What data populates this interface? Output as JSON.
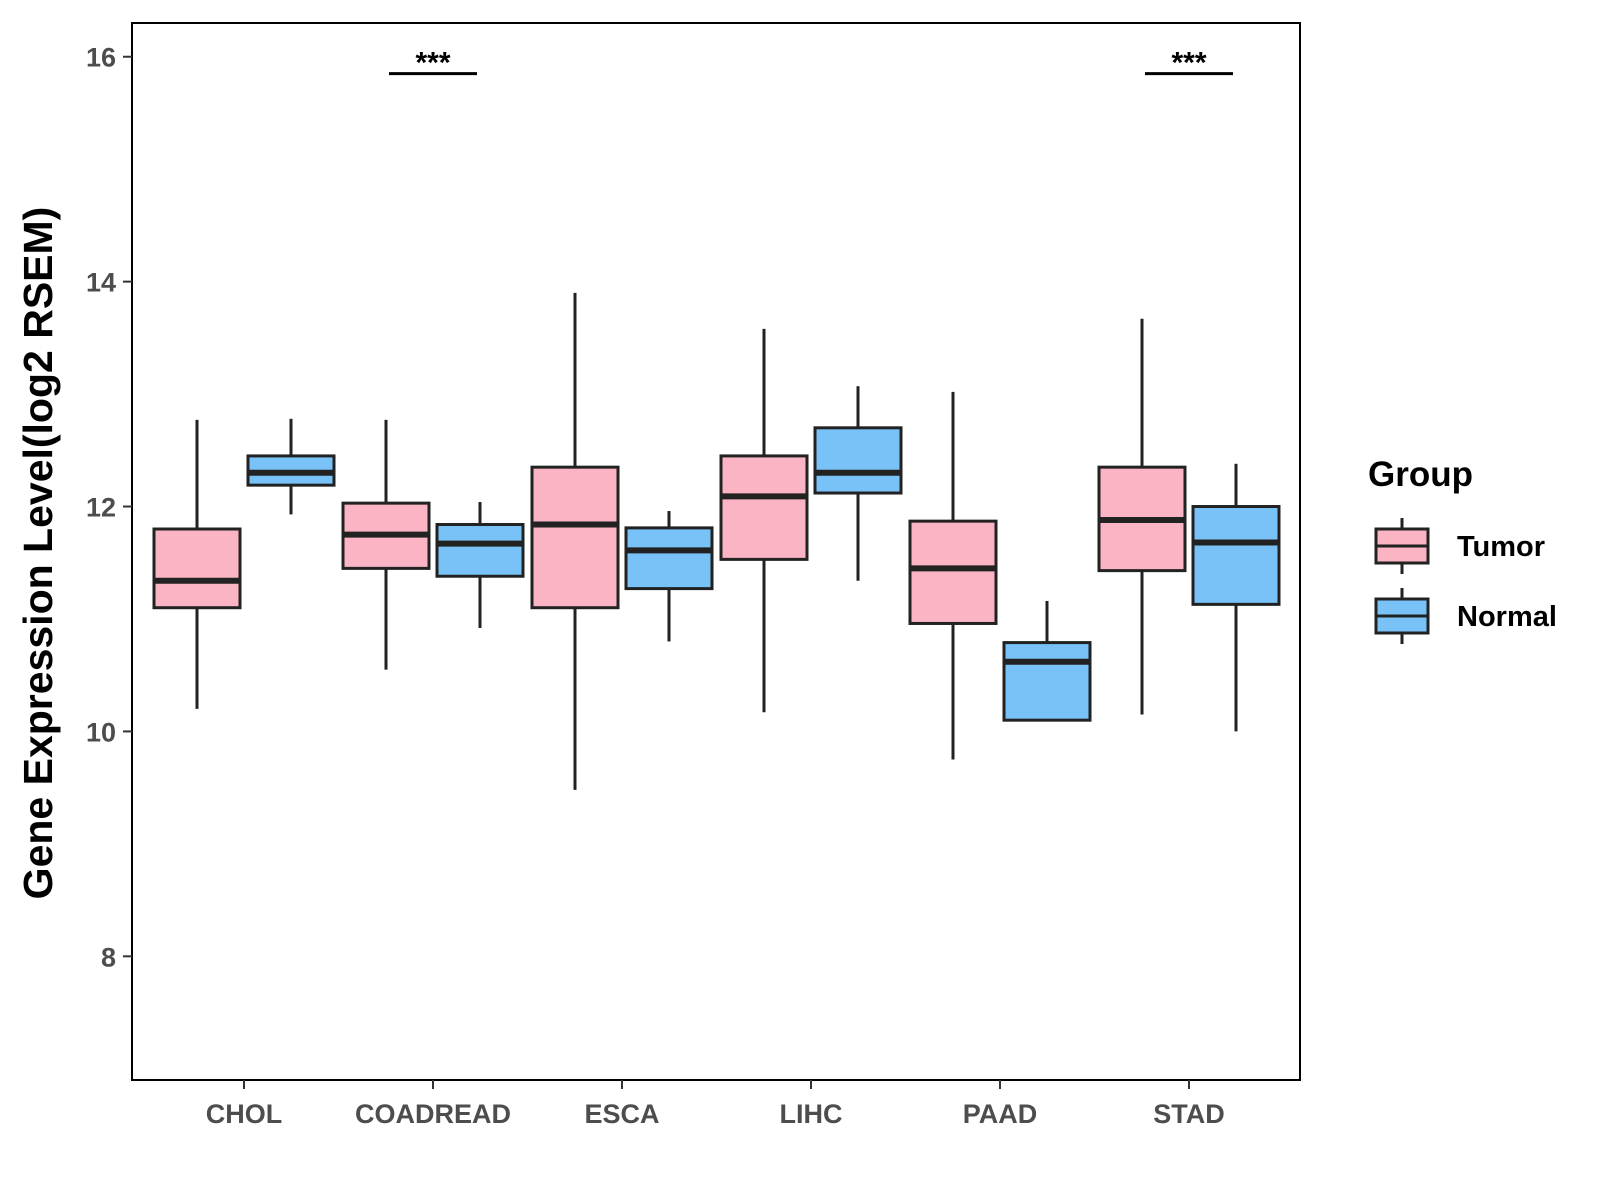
{
  "chart_data": {
    "type": "box",
    "title": "",
    "xlabel": "",
    "ylabel": "Gene Expression Level(log2 RSEM)",
    "ylim": [
      6.9,
      16.3
    ],
    "yticks": [
      8,
      10,
      12,
      14,
      16
    ],
    "categories": [
      "CHOL",
      "COADREAD",
      "ESCA",
      "LIHC",
      "PAAD",
      "STAD"
    ],
    "legend": {
      "title": "Group",
      "position": "right"
    },
    "grid": false,
    "series": [
      {
        "name": "Tumor",
        "color": "#fbb4c3",
        "boxes": [
          {
            "min": 10.2,
            "q1": 11.1,
            "median": 11.34,
            "q3": 11.8,
            "max": 12.77
          },
          {
            "min": 10.55,
            "q1": 11.45,
            "median": 11.75,
            "q3": 12.03,
            "max": 12.77
          },
          {
            "min": 9.48,
            "q1": 11.1,
            "median": 11.84,
            "q3": 12.35,
            "max": 13.9
          },
          {
            "min": 10.17,
            "q1": 11.53,
            "median": 12.09,
            "q3": 12.45,
            "max": 13.58
          },
          {
            "min": 9.75,
            "q1": 10.96,
            "median": 11.45,
            "q3": 11.87,
            "max": 13.02
          },
          {
            "min": 10.15,
            "q1": 11.43,
            "median": 11.88,
            "q3": 12.35,
            "max": 13.67
          }
        ]
      },
      {
        "name": "Normal",
        "color": "#78c2f8",
        "boxes": [
          {
            "min": 11.93,
            "q1": 12.19,
            "median": 12.3,
            "q3": 12.45,
            "max": 12.78
          },
          {
            "min": 10.92,
            "q1": 11.38,
            "median": 11.67,
            "q3": 11.84,
            "max": 12.04
          },
          {
            "min": 10.8,
            "q1": 11.27,
            "median": 11.61,
            "q3": 11.81,
            "max": 11.96
          },
          {
            "min": 11.34,
            "q1": 12.12,
            "median": 12.3,
            "q3": 12.7,
            "max": 13.07
          },
          {
            "min": 10.1,
            "q1": 10.1,
            "median": 10.62,
            "q3": 10.79,
            "max": 11.16
          },
          {
            "min": 10.0,
            "q1": 11.13,
            "median": 11.68,
            "q3": 12.0,
            "max": 12.38
          }
        ]
      }
    ],
    "annotations": [
      {
        "category": "COADREAD",
        "text": "***",
        "y": 15.85
      },
      {
        "category": "STAD",
        "text": "***",
        "y": 15.85
      }
    ]
  }
}
